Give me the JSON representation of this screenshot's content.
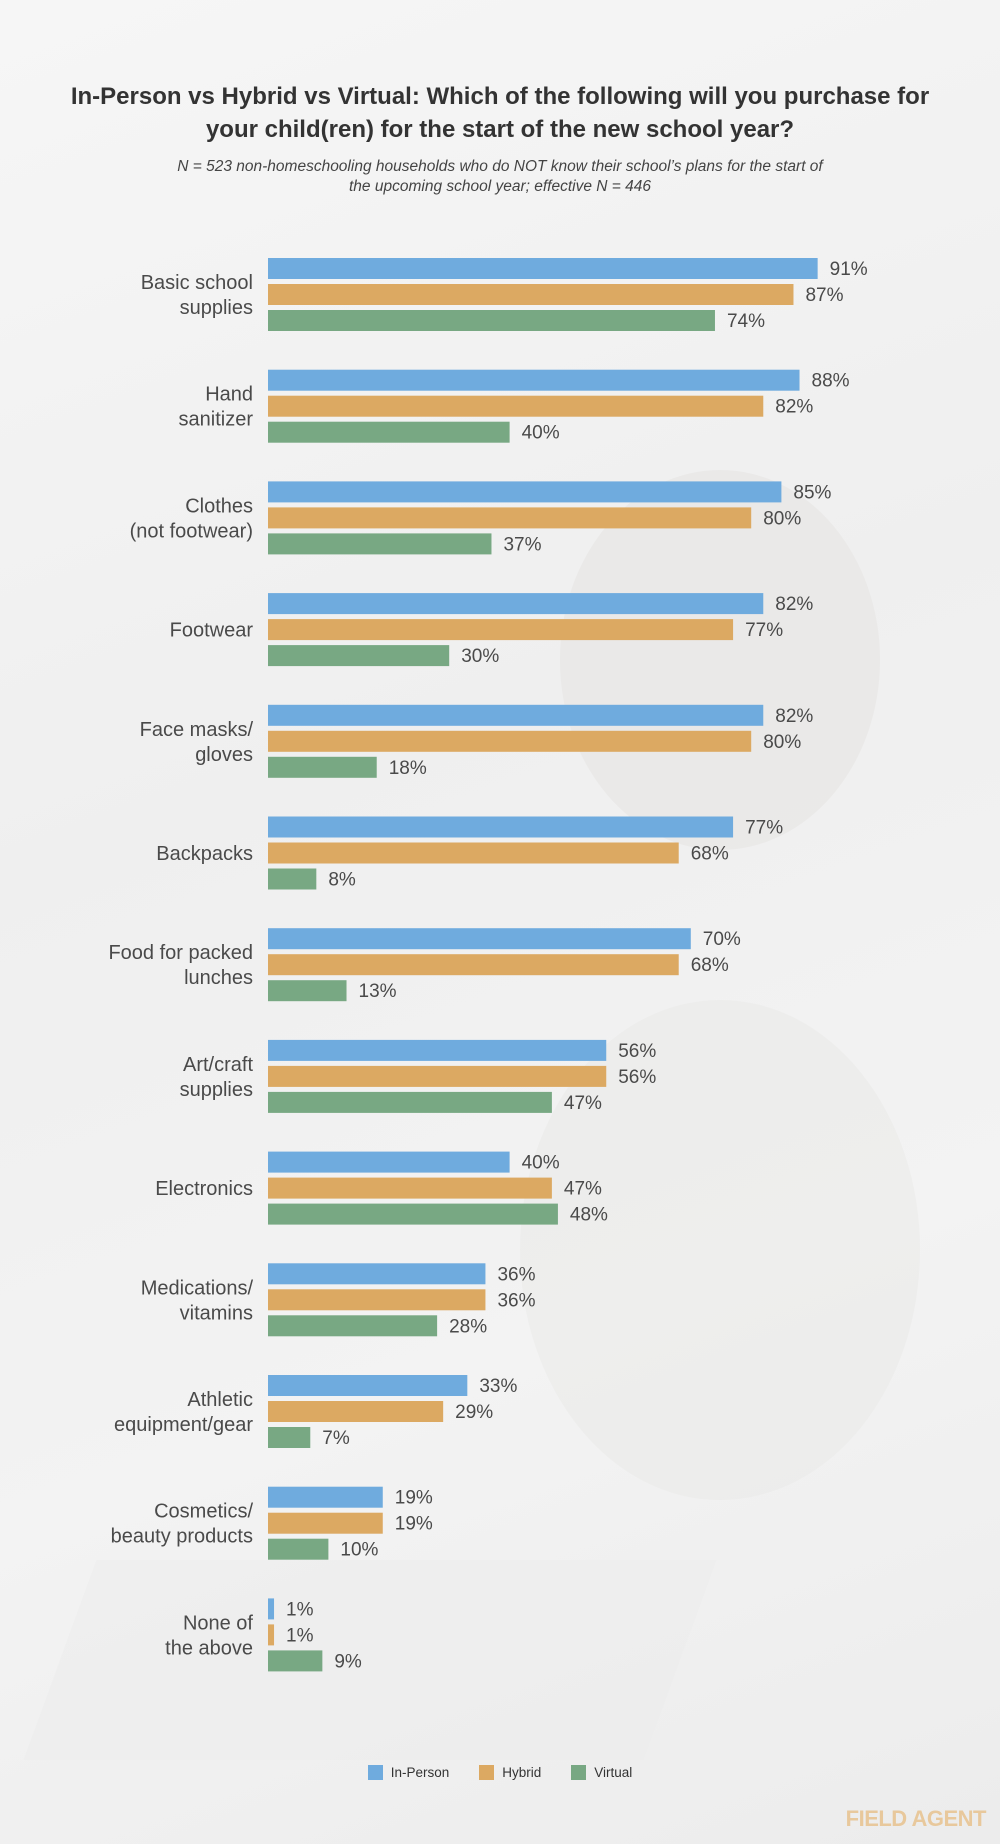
{
  "chart_data": {
    "type": "bar",
    "orientation": "horizontal",
    "title": "In-Person vs Hybrid vs Virtual: Which of the following will you purchase for your child(ren) for the start of the new school year?",
    "subtitle": "N = 523 non-homeschooling households who do NOT know their school’s plans for the start of the upcoming school year; effective N = 446",
    "categories": [
      [
        "Basic school",
        "supplies"
      ],
      [
        "Hand",
        "sanitizer"
      ],
      [
        "Clothes",
        "(not footwear)"
      ],
      [
        "Footwear"
      ],
      [
        "Face masks/",
        "gloves"
      ],
      [
        "Backpacks"
      ],
      [
        "Food for packed",
        "lunches"
      ],
      [
        "Art/craft",
        "supplies"
      ],
      [
        "Electronics"
      ],
      [
        "Medications/",
        "vitamins"
      ],
      [
        "Athletic",
        "equipment/gear"
      ],
      [
        "Cosmetics/",
        "beauty products"
      ],
      [
        "None of",
        "the above"
      ]
    ],
    "series": [
      {
        "name": "In-Person",
        "color": "#6fabde",
        "values": [
          91,
          88,
          85,
          82,
          82,
          77,
          70,
          56,
          40,
          36,
          33,
          19,
          1
        ]
      },
      {
        "name": "Hybrid",
        "color": "#dca962",
        "values": [
          87,
          82,
          80,
          77,
          80,
          68,
          68,
          56,
          47,
          36,
          29,
          19,
          1
        ]
      },
      {
        "name": "Virtual",
        "color": "#78a883",
        "values": [
          74,
          40,
          37,
          30,
          18,
          8,
          13,
          47,
          48,
          28,
          7,
          10,
          9
        ]
      }
    ],
    "value_suffix": "%",
    "xlim": [
      0,
      100
    ],
    "grid": false,
    "legend_position": "bottom-center"
  },
  "brand": {
    "text": "FIELD AGENT",
    "color": "#e8c89c"
  }
}
